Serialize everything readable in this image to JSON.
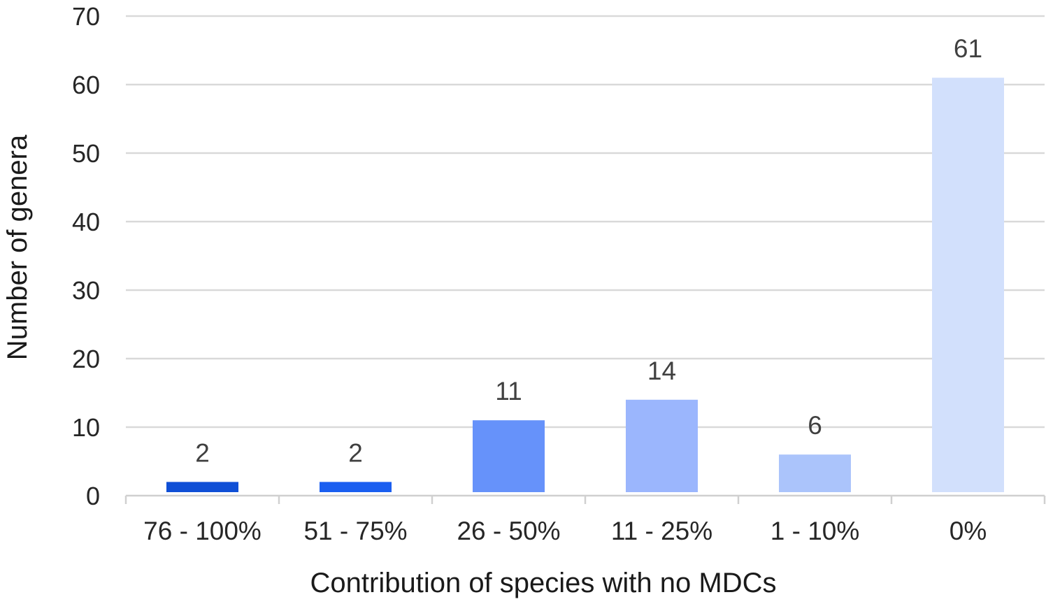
{
  "chart_data": {
    "type": "bar",
    "title": "",
    "xlabel": "Contribution of species with no MDCs",
    "ylabel": "Number of genera",
    "categories": [
      "76 - 100%",
      "51 - 75%",
      "26 - 50%",
      "11 - 25%",
      "1 - 10%",
      "0%"
    ],
    "values": [
      2,
      2,
      11,
      14,
      6,
      61
    ],
    "data_labels": [
      "2",
      "2",
      "11",
      "14",
      "6",
      "61"
    ],
    "bar_colors": [
      "#0f4fd6",
      "#1a5ef0",
      "#6692fa",
      "#9bb6fd",
      "#abc4fb",
      "#d2e0fc"
    ],
    "ylim": [
      0,
      70
    ],
    "yticks": [
      0,
      10,
      20,
      30,
      40,
      50,
      60,
      70
    ],
    "ytick_labels": [
      "0",
      "10",
      "20",
      "30",
      "40",
      "50",
      "60",
      "70"
    ],
    "grid": true,
    "legend": "none"
  }
}
